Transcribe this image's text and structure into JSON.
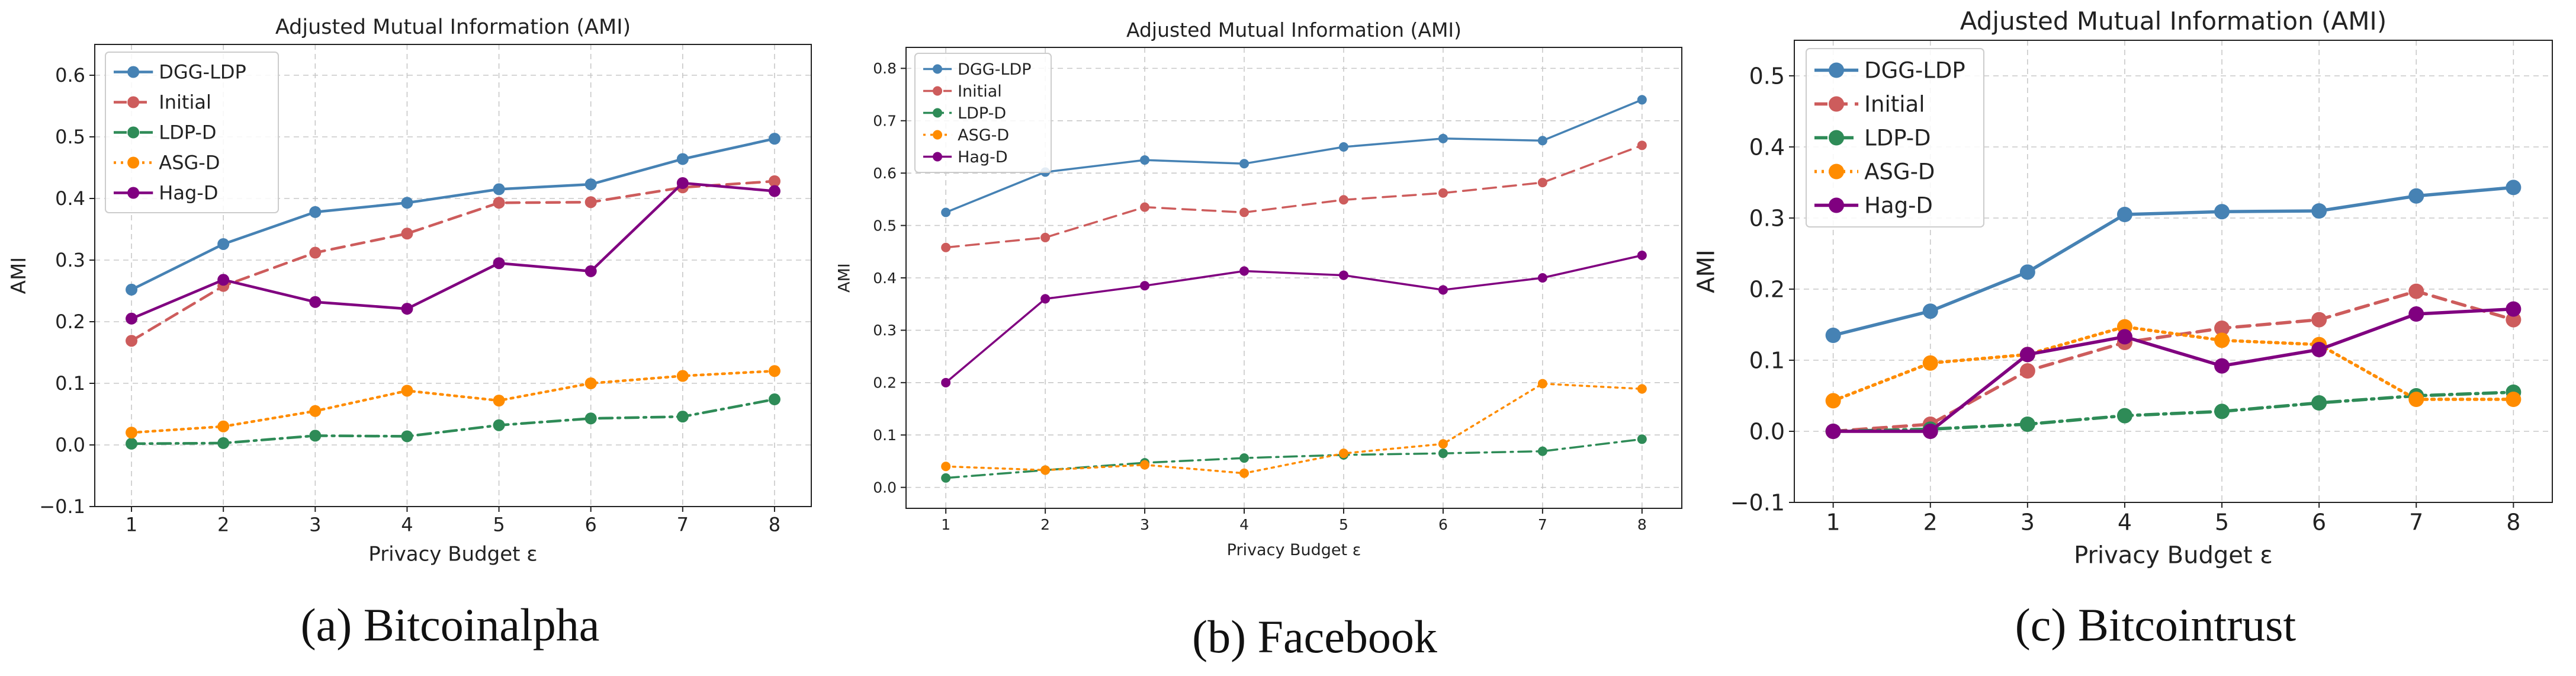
{
  "colors": {
    "DGG-LDP": "#4682b4",
    "Initial": "#cd5c5c",
    "LDP-D": "#2e8b57",
    "ASG-D": "#ff8c00",
    "Hag-D": "#800080"
  },
  "captions": [
    "(a) Bitcoinalpha",
    "(b) Facebook",
    "(c) Bitcointrust"
  ],
  "chart_data": [
    {
      "type": "line",
      "title": "Adjusted Mutual Information (AMI)",
      "xlabel": "Privacy Budget ε",
      "ylabel": "AMI",
      "x": [
        1,
        2,
        3,
        4,
        5,
        6,
        7,
        8
      ],
      "xlim": [
        0.6,
        8.4
      ],
      "ylim": [
        -0.1,
        0.65
      ],
      "yticks": [
        -0.1,
        0.0,
        0.1,
        0.2,
        0.3,
        0.4,
        0.5,
        0.6
      ],
      "ytick_labels": [
        "−0.1",
        "0.0",
        "0.1",
        "0.2",
        "0.3",
        "0.4",
        "0.5",
        "0.6"
      ],
      "grid": true,
      "legend": "top-left",
      "series": [
        {
          "name": "DGG-LDP",
          "style": "solid",
          "values": [
            0.252,
            0.326,
            0.378,
            0.393,
            0.415,
            0.423,
            0.464,
            0.497
          ]
        },
        {
          "name": "Initial",
          "style": "dashed",
          "values": [
            0.169,
            0.258,
            0.312,
            0.343,
            0.393,
            0.394,
            0.418,
            0.428
          ]
        },
        {
          "name": "LDP-D",
          "style": "dashdot",
          "values": [
            0.002,
            0.003,
            0.015,
            0.014,
            0.032,
            0.043,
            0.046,
            0.074
          ]
        },
        {
          "name": "ASG-D",
          "style": "dotted",
          "values": [
            0.02,
            0.03,
            0.055,
            0.088,
            0.072,
            0.1,
            0.112,
            0.12
          ]
        },
        {
          "name": "Hag-D",
          "style": "solid",
          "values": [
            0.205,
            0.268,
            0.232,
            0.221,
            0.295,
            0.282,
            0.425,
            0.412
          ]
        }
      ]
    },
    {
      "type": "line",
      "title": "Adjusted Mutual Information (AMI)",
      "xlabel": "Privacy Budget ε",
      "ylabel": "AMI",
      "x": [
        1,
        2,
        3,
        4,
        5,
        6,
        7,
        8
      ],
      "xlim": [
        0.6,
        8.4
      ],
      "ylim": [
        -0.04,
        0.84
      ],
      "yticks": [
        0.0,
        0.1,
        0.2,
        0.3,
        0.4,
        0.5,
        0.6,
        0.7,
        0.8
      ],
      "ytick_labels": [
        "0.0",
        "0.1",
        "0.2",
        "0.3",
        "0.4",
        "0.5",
        "0.6",
        "0.7",
        "0.8"
      ],
      "grid": true,
      "legend": "top-left",
      "series": [
        {
          "name": "DGG-LDP",
          "style": "solid",
          "values": [
            0.525,
            0.602,
            0.625,
            0.618,
            0.65,
            0.666,
            0.662,
            0.74
          ]
        },
        {
          "name": "Initial",
          "style": "dashed",
          "values": [
            0.458,
            0.477,
            0.535,
            0.525,
            0.549,
            0.562,
            0.582,
            0.653
          ]
        },
        {
          "name": "LDP-D",
          "style": "dashdot",
          "values": [
            0.018,
            0.033,
            0.047,
            0.056,
            0.062,
            0.065,
            0.069,
            0.092
          ]
        },
        {
          "name": "ASG-D",
          "style": "dotted",
          "values": [
            0.04,
            0.033,
            0.043,
            0.027,
            0.065,
            0.083,
            0.198,
            0.188
          ]
        },
        {
          "name": "Hag-D",
          "style": "solid",
          "values": [
            0.2,
            0.36,
            0.385,
            0.413,
            0.405,
            0.377,
            0.4,
            0.443
          ]
        }
      ]
    },
    {
      "type": "line",
      "title": "Adjusted Mutual Information (AMI)",
      "xlabel": "Privacy Budget ε",
      "ylabel": "AMI",
      "x": [
        1,
        2,
        3,
        4,
        5,
        6,
        7,
        8
      ],
      "xlim": [
        0.6,
        8.4
      ],
      "ylim": [
        -0.1,
        0.55
      ],
      "yticks": [
        -0.1,
        0.0,
        0.1,
        0.2,
        0.3,
        0.4,
        0.5
      ],
      "ytick_labels": [
        "−0.1",
        "0.0",
        "0.1",
        "0.2",
        "0.3",
        "0.4",
        "0.5"
      ],
      "grid": true,
      "legend": "top-left",
      "series": [
        {
          "name": "DGG-LDP",
          "style": "solid",
          "values": [
            0.135,
            0.169,
            0.224,
            0.305,
            0.309,
            0.31,
            0.331,
            0.343
          ]
        },
        {
          "name": "Initial",
          "style": "dashed",
          "values": [
            0.0,
            0.01,
            0.085,
            0.125,
            0.145,
            0.157,
            0.197,
            0.157
          ]
        },
        {
          "name": "LDP-D",
          "style": "dashdot",
          "values": [
            0.0,
            0.003,
            0.01,
            0.022,
            0.028,
            0.04,
            0.05,
            0.055
          ]
        },
        {
          "name": "ASG-D",
          "style": "dotted",
          "values": [
            0.043,
            0.096,
            0.108,
            0.147,
            0.128,
            0.122,
            0.045,
            0.045
          ]
        },
        {
          "name": "Hag-D",
          "style": "solid",
          "values": [
            0.0,
            0.0,
            0.108,
            0.133,
            0.092,
            0.115,
            0.165,
            0.172
          ]
        }
      ]
    }
  ]
}
